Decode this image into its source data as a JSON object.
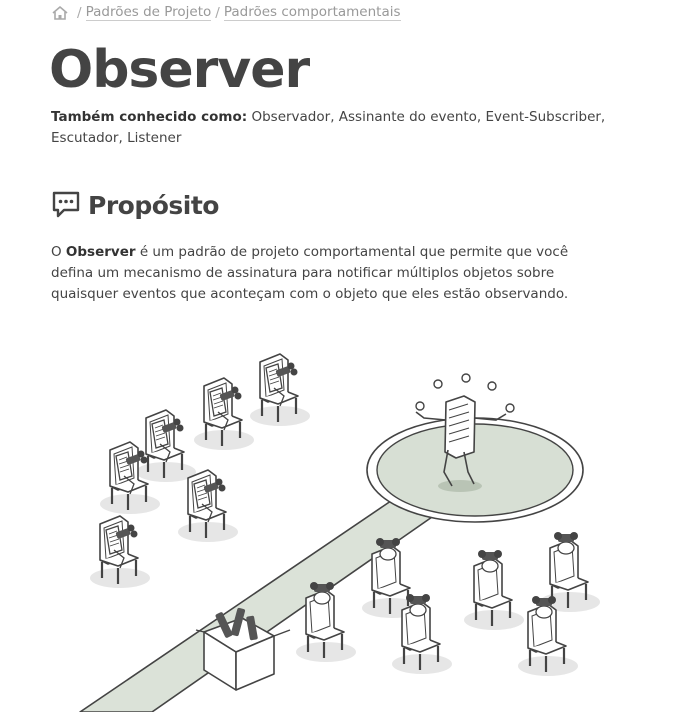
{
  "breadcrumb": {
    "home_icon": "home-icon",
    "separator": "/",
    "items": [
      {
        "label": "Padrões de Projeto"
      },
      {
        "label": "Padrões comportamentais"
      }
    ]
  },
  "page_title": "Observer",
  "aka": {
    "label": "Também conhecido como:",
    "value": " Observador, Assinante do evento, Event-Subscriber, Escutador, Listener"
  },
  "section": {
    "icon": "speech-bubble-icon",
    "title": "Propósito"
  },
  "intent": {
    "prefix": "O ",
    "bold": "Observer",
    "rest": " é um padrão de projeto comportamental que permite que você defina um mecanismo de assinatura para notificar múltiplos objetos sobre quaisquer eventos que aconteçam com o objeto que eles estão observando."
  },
  "illustration": {
    "description_icon": "observer-illustration"
  }
}
